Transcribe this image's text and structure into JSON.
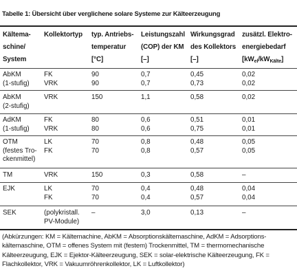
{
  "caption": "Tabelle 1: Übersicht über verglichene solare Systeme zur Kälteerzeugung",
  "headers": {
    "col1": [
      "Kältema-",
      "schine/",
      "System"
    ],
    "col2": [
      "Kollektortyp"
    ],
    "col3": [
      "typ. Antriebs-",
      "temperatur",
      "[°C]"
    ],
    "col4": [
      "Leistungszahl",
      "(COP) der KM",
      "[–]"
    ],
    "col5": [
      "Wirkungsgrad",
      "des Kollektors",
      "[–]"
    ],
    "col6_line1": "zusätzl. Elektro-",
    "col6_line2": "energiebedarf",
    "col6_unit_prefix": "[kW",
    "col6_sub1": "el",
    "col6_mid": "/kW",
    "col6_sub2": "Kälte",
    "col6_unit_suffix": "]"
  },
  "rows": [
    {
      "system": [
        "AbKM",
        "(1-stufig)"
      ],
      "kollektor": [
        "FK",
        "VRK"
      ],
      "temp": [
        "90",
        "90"
      ],
      "cop": [
        "0,7",
        "0,7"
      ],
      "eta": [
        "0,45",
        "0,73"
      ],
      "el": [
        "0,02",
        "0,02"
      ]
    },
    {
      "system": [
        "AbKM",
        "(2-stufig)"
      ],
      "kollektor": [
        "VRK"
      ],
      "temp": [
        "150"
      ],
      "cop": [
        "1,1"
      ],
      "eta": [
        "0,58"
      ],
      "el": [
        "0,02"
      ]
    },
    {
      "system": [
        "AdKM",
        "(1-stufig)"
      ],
      "kollektor": [
        "FK",
        "VRK"
      ],
      "temp": [
        "80",
        "80"
      ],
      "cop": [
        "0,6",
        "0,6"
      ],
      "eta": [
        "0,51",
        "0,75"
      ],
      "el": [
        "0,01",
        "0,01"
      ]
    },
    {
      "system": [
        "OTM",
        "(festes Tro-",
        "ckenmittel)"
      ],
      "kollektor": [
        "LK",
        "FK"
      ],
      "temp": [
        "70",
        "70"
      ],
      "cop": [
        "0,8",
        "0,8"
      ],
      "eta": [
        "0,48",
        "0,57"
      ],
      "el": [
        "0,05",
        "0,05"
      ]
    },
    {
      "system": [
        "TM"
      ],
      "kollektor": [
        "VRK"
      ],
      "temp": [
        "150"
      ],
      "cop": [
        "0,3"
      ],
      "eta": [
        "0,58"
      ],
      "el": [
        "–"
      ]
    },
    {
      "system": [
        "EJK"
      ],
      "kollektor": [
        "LK",
        "FK"
      ],
      "temp": [
        "70",
        "70"
      ],
      "cop": [
        "0,4",
        "0,4"
      ],
      "eta": [
        "0,48",
        "0,57"
      ],
      "el": [
        "0,04",
        "0,04"
      ]
    },
    {
      "system": [
        "SEK"
      ],
      "kollektor": [
        "(polykristall.",
        "PV-Module)"
      ],
      "temp": [
        "–"
      ],
      "cop": [
        "3,0"
      ],
      "eta": [
        "0,13"
      ],
      "el": [
        "–"
      ]
    }
  ],
  "notes": "(Abkürzungen: KM = Kältemachine, AbKM = Absorptionskältemaschine, AdKM = Adsorptions­kältemaschine, OTM = offenes System mit (festem) Trockenmittel, TM = thermomechanische Kälteerzeugung, EJK = Ejektor-Kälteerzeugung, SEK = solar-elektrische Kälteerzeugung, FK = Flachkollektor, VRK = Vakuumröhrenkollektor, LK = Luftkollektor)"
}
